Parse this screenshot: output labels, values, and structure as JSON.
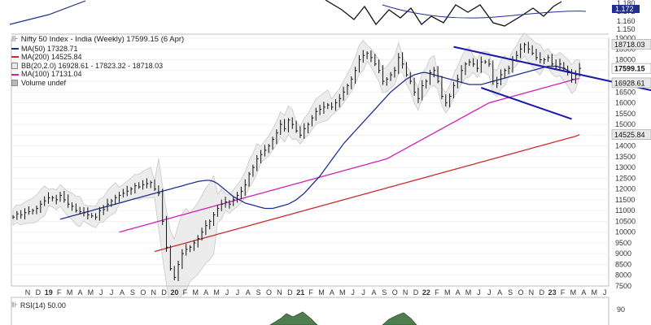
{
  "chart_data": {
    "type": "line",
    "title": "Nifty 50 Index - India (Weekly) 17599.15 (6 Apr)",
    "ylim": [
      7500,
      19000
    ],
    "x_ticks": [
      "N",
      "D",
      "19",
      "F",
      "M",
      "A",
      "M",
      "J",
      "J",
      "A",
      "S",
      "O",
      "N",
      "D",
      "20",
      "F",
      "M",
      "A",
      "M",
      "J",
      "J",
      "A",
      "S",
      "O",
      "N",
      "D",
      "21",
      "F",
      "M",
      "A",
      "M",
      "J",
      "J",
      "A",
      "S",
      "O",
      "N",
      "D",
      "22",
      "F",
      "M",
      "A",
      "M",
      "J",
      "J",
      "A",
      "S",
      "O",
      "N",
      "D",
      "23",
      "F",
      "M",
      "A",
      "M",
      "J"
    ],
    "y_ticks": [
      7500,
      8000,
      8500,
      9000,
      9500,
      10000,
      10500,
      11000,
      11500,
      12000,
      12500,
      13000,
      13500,
      14000,
      14500,
      15000,
      15500,
      16000,
      16500,
      17000,
      17500,
      18000,
      18500,
      19000
    ],
    "value_labels": [
      {
        "text": "18718.03",
        "value": 18718.03,
        "color": "#e8e8e8"
      },
      {
        "text": "17599.15",
        "value": 17599.15,
        "color": "#ffffff",
        "bold": true
      },
      {
        "text": "16928.61",
        "value": 16928.61,
        "color": "#e8e8e8"
      },
      {
        "text": "14525.84",
        "value": 14525.84,
        "color": "#e8e8e8"
      }
    ],
    "legend": [
      {
        "text": "MA(50) 17328.71",
        "color": "#1f2f8f"
      },
      {
        "text": "MA(200) 14525.84",
        "color": "#cc2a2a"
      },
      {
        "text": "BB(20,2.0) 16928.61 - 17823.32 - 18718.03",
        "color": "#aaaaaa"
      },
      {
        "text": "MA(100) 17131.04",
        "color": "#d21fb4"
      },
      {
        "text": "Volume undef",
        "color": "#888888"
      }
    ],
    "price": [
      10700,
      10850,
      10800,
      10900,
      10950,
      11000,
      11100,
      11300,
      11450,
      11600,
      11600,
      11500,
      11700,
      11500,
      11300,
      11200,
      11000,
      10950,
      10900,
      10800,
      10750,
      10700,
      11000,
      11050,
      11300,
      11450,
      11600,
      11700,
      11800,
      11900,
      12000,
      12150,
      12100,
      12200,
      12250,
      12300,
      12000,
      11800,
      10500,
      9300,
      8300,
      7900,
      8500,
      9000,
      9200,
      9300,
      9500,
      9700,
      10000,
      10300,
      10500,
      10800,
      11100,
      11300,
      11400,
      11300,
      11500,
      11700,
      11900,
      12200,
      12700,
      13000,
      13400,
      13600,
      13800,
      14000,
      14300,
      14600,
      15000,
      14800,
      15200,
      15000,
      14700,
      14500,
      14800,
      15000,
      15300,
      15600,
      15700,
      15800,
      15900,
      15800,
      16000,
      16200,
      16500,
      16800,
      17100,
      17500,
      18000,
      18200,
      18300,
      18100,
      17800,
      17500,
      17000,
      17100,
      17300,
      17500,
      18100,
      17800,
      17300,
      17000,
      16500,
      16200,
      16800,
      17000,
      17400,
      17500,
      17000,
      16300,
      16000,
      16300,
      16800,
      17100,
      17500,
      17800,
      17900,
      17800,
      17600,
      17900,
      17900,
      17800,
      17000,
      16900,
      17300,
      17500,
      17600,
      18000,
      18200,
      18500,
      18700,
      18500,
      18300,
      18100,
      18000,
      18000,
      18100,
      17800,
      17700,
      17800,
      17600,
      17400,
      17100,
      17300,
      17599
    ],
    "ma50": [
      10600,
      10650,
      10700,
      10750,
      10800,
      10850,
      10900,
      10950,
      11000,
      11050,
      11100,
      11150,
      11200,
      11250,
      11300,
      11350,
      11400,
      11450,
      11500,
      11550,
      11600,
      11650,
      11700,
      11750,
      11800,
      11850,
      11900,
      11950,
      12000,
      12050,
      12100,
      12150,
      12200,
      12250,
      12300,
      12350,
      12380,
      12400,
      12400,
      12350,
      12250,
      12100,
      11950,
      11800,
      11650,
      11550,
      11450,
      11350,
      11300,
      11250,
      11200,
      11150,
      11100,
      11100,
      11100,
      11150,
      11200,
      11250,
      11300,
      11400,
      11500,
      11650,
      11800,
      12000,
      12200,
      12400,
      12600,
      12850,
      13100,
      13350,
      13600,
      13850,
      14100,
      14300,
      14500,
      14700,
      14900,
      15100,
      15300,
      15500,
      15700,
      15900,
      16100,
      16300,
      16500,
      16650,
      16800,
      16950,
      17100,
      17200,
      17300,
      17350,
      17400,
      17400,
      17350,
      17300,
      17250,
      17200,
      17150,
      17100,
      17050,
      17000,
      16950,
      16900,
      16850,
      16850,
      16850,
      16850,
      16900,
      16950,
      17000,
      17050,
      17100,
      17150,
      17200,
      17250,
      17300,
      17350,
      17400,
      17450,
      17500,
      17550,
      17600,
      17650,
      17700,
      17700,
      17700,
      17650,
      17600,
      17500,
      17400,
      17350,
      17330
    ],
    "ma100": [
      10000,
      10050,
      10100,
      10150,
      10200,
      10250,
      10300,
      10350,
      10400,
      10450,
      10500,
      10550,
      10600,
      10650,
      10700,
      10750,
      10800,
      10850,
      10900,
      10950,
      11000,
      11050,
      11100,
      11150,
      11200,
      11250,
      11300,
      11350,
      11400,
      11450,
      11500,
      11550,
      11600,
      11650,
      11700,
      11750,
      11800,
      11850,
      11900,
      11950,
      12000,
      12050,
      12100,
      12150,
      12200,
      12250,
      12300,
      12350,
      12400,
      12450,
      12500,
      12550,
      12600,
      12650,
      12700,
      12750,
      12800,
      12850,
      12900,
      12950,
      13000,
      13050,
      13100,
      13150,
      13200,
      13250,
      13300,
      13350,
      13400,
      13500,
      13600,
      13700,
      13800,
      13900,
      14000,
      14100,
      14200,
      14300,
      14400,
      14500,
      14600,
      14700,
      14800,
      14900,
      15000,
      15100,
      15200,
      15300,
      15400,
      15500,
      15600,
      15700,
      15800,
      15900,
      16000,
      16050,
      16100,
      16150,
      16200,
      16250,
      16300,
      16350,
      16400,
      16450,
      16500,
      16550,
      16600,
      16650,
      16700,
      16750,
      16800,
      16850,
      16900,
      16950,
      17000,
      17050,
      17100,
      17131
    ],
    "ma200": [
      9100,
      9150,
      9200,
      9250,
      9300,
      9350,
      9400,
      9450,
      9500,
      9550,
      9600,
      9650,
      9700,
      9750,
      9800,
      9850,
      9900,
      9950,
      10000,
      10050,
      10100,
      10150,
      10200,
      10250,
      10300,
      10350,
      10400,
      10450,
      10500,
      10550,
      10600,
      10650,
      10700,
      10750,
      10800,
      10850,
      10900,
      10950,
      11000,
      11050,
      11100,
      11150,
      11200,
      11250,
      11300,
      11350,
      11400,
      11450,
      11500,
      11550,
      11600,
      11650,
      11700,
      11750,
      11800,
      11850,
      11900,
      11950,
      12000,
      12050,
      12100,
      12150,
      12200,
      12250,
      12300,
      12350,
      12400,
      12450,
      12500,
      12550,
      12600,
      12650,
      12700,
      12750,
      12800,
      12850,
      12900,
      12950,
      13000,
      13050,
      13100,
      13150,
      13200,
      13250,
      13300,
      13350,
      13400,
      13450,
      13500,
      13550,
      13600,
      13650,
      13700,
      13750,
      13800,
      13850,
      13900,
      13950,
      14000,
      14050,
      14100,
      14150,
      14200,
      14250,
      14300,
      14350,
      14400,
      14450,
      14525
    ],
    "trendlines": [
      {
        "from": {
          "week": 112,
          "value": 18600
        },
        "to": {
          "week": 163,
          "value": 16550
        }
      },
      {
        "from": {
          "week": 119,
          "value": 16700
        },
        "to": {
          "week": 142,
          "value": 15250
        }
      }
    ],
    "rsi": {
      "label": "RSI(14) 50.00",
      "tick": "90"
    },
    "top_panel": {
      "ticks": [
        "1.180",
        "1.172",
        "1.160",
        "1.150"
      ]
    }
  }
}
